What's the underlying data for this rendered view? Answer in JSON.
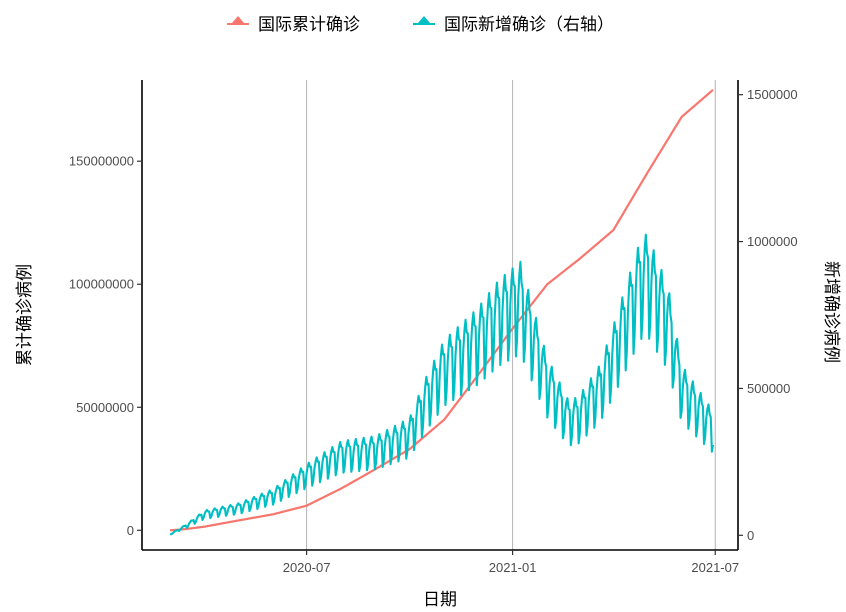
{
  "chart_data": {
    "type": "line",
    "xlabel": "日期",
    "ylabel_left": "累计确诊病例",
    "ylabel_right": "新增确诊病例",
    "x_range": [
      "2020-03-01",
      "2021-06-29"
    ],
    "x_ticks": [
      {
        "date": "2020-07-01",
        "label": "2020-07"
      },
      {
        "date": "2021-01-01",
        "label": "2021-01"
      },
      {
        "date": "2021-07-01",
        "label": "2021-07"
      }
    ],
    "y_left": {
      "min": -8000000,
      "max": 183000000,
      "ticks": [
        0,
        50000000,
        100000000,
        150000000
      ]
    },
    "y_right": {
      "min": -50000,
      "max": 1550000,
      "ticks": [
        0,
        500000,
        1000000,
        1500000
      ]
    },
    "legend_position": "top",
    "grid": "vertical at x ticks",
    "series": [
      {
        "name": "国际累计确诊",
        "axis": "left",
        "color": "#F8766D",
        "points": [
          [
            "2020-03-01",
            0
          ],
          [
            "2020-03-15",
            500000
          ],
          [
            "2020-04-01",
            1500000
          ],
          [
            "2020-05-01",
            4000000
          ],
          [
            "2020-06-01",
            6500000
          ],
          [
            "2020-07-01",
            10000000
          ],
          [
            "2020-08-01",
            17000000
          ],
          [
            "2020-09-01",
            25000000
          ],
          [
            "2020-10-01",
            33000000
          ],
          [
            "2020-11-01",
            45000000
          ],
          [
            "2020-12-01",
            63000000
          ],
          [
            "2021-01-01",
            82000000
          ],
          [
            "2021-02-01",
            100000000
          ],
          [
            "2021-03-01",
            110000000
          ],
          [
            "2021-04-01",
            122000000
          ],
          [
            "2021-05-01",
            145000000
          ],
          [
            "2021-06-01",
            168000000
          ],
          [
            "2021-06-29",
            179000000
          ]
        ]
      },
      {
        "name": "国际新增确诊（右轴）",
        "axis": "right",
        "color": "#00BFC4",
        "weekly_swing": 0.22,
        "points": [
          [
            "2020-03-01",
            3000
          ],
          [
            "2020-03-15",
            30000
          ],
          [
            "2020-04-01",
            70000
          ],
          [
            "2020-05-01",
            90000
          ],
          [
            "2020-06-01",
            130000
          ],
          [
            "2020-07-01",
            200000
          ],
          [
            "2020-07-15",
            230000
          ],
          [
            "2020-08-01",
            265000
          ],
          [
            "2020-09-01",
            280000
          ],
          [
            "2020-10-01",
            330000
          ],
          [
            "2020-10-15",
            440000
          ],
          [
            "2020-11-01",
            550000
          ],
          [
            "2020-12-01",
            640000
          ],
          [
            "2020-12-20",
            720000
          ],
          [
            "2021-01-08",
            770000
          ],
          [
            "2021-02-01",
            500000
          ],
          [
            "2021-02-20",
            380000
          ],
          [
            "2021-03-01",
            390000
          ],
          [
            "2021-03-20",
            480000
          ],
          [
            "2021-04-01",
            590000
          ],
          [
            "2021-04-25",
            830000
          ],
          [
            "2021-05-01",
            850000
          ],
          [
            "2021-05-20",
            700000
          ],
          [
            "2021-06-01",
            480000
          ],
          [
            "2021-06-29",
            350000
          ]
        ]
      }
    ]
  }
}
